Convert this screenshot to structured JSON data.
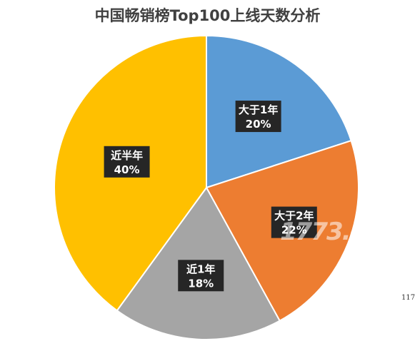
{
  "title": "中国畅销榜Top100上线天数分析",
  "watermark": "1773.c",
  "corner_text": "117",
  "chart_data": {
    "type": "pie",
    "title": "中国畅销榜Top100上线天数分析",
    "slices": [
      {
        "label": "大于1年",
        "value": 20,
        "value_label": "20%",
        "color": "#5B9BD5"
      },
      {
        "label": "大于2年",
        "value": 22,
        "value_label": "22%",
        "color": "#ED7D31"
      },
      {
        "label": "近1年",
        "value": 18,
        "value_label": "18%",
        "color": "#A5A5A5"
      },
      {
        "label": "近半年",
        "value": 40,
        "value_label": "40%",
        "color": "#FFC000"
      }
    ],
    "start": "12 o'clock",
    "direction": "clockwise",
    "legend": "none"
  }
}
